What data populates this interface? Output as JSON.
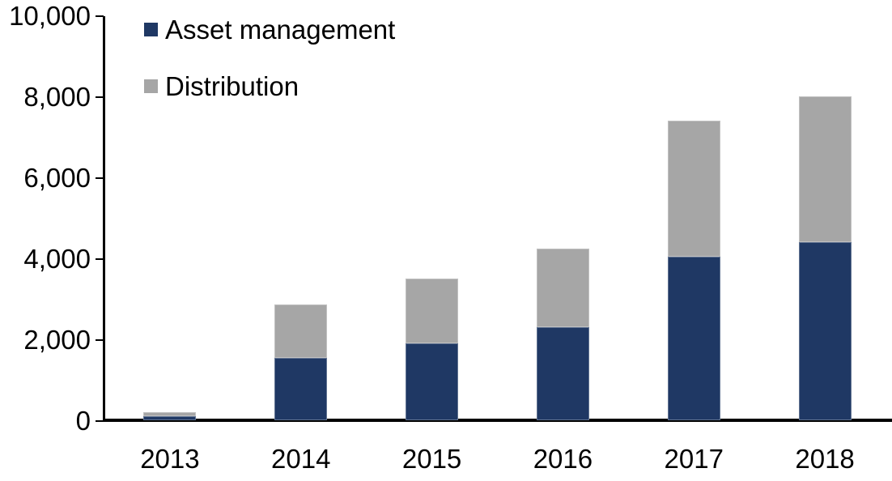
{
  "chart_data": {
    "type": "bar",
    "stacked": true,
    "title": "",
    "xlabel": "",
    "ylabel": "",
    "categories": [
      "2013",
      "2014",
      "2015",
      "2016",
      "2017",
      "2018"
    ],
    "series": [
      {
        "name": "Asset management",
        "color": "#1f3864",
        "values": [
          100,
          1550,
          1900,
          2300,
          4050,
          4400
        ]
      },
      {
        "name": "Distribution",
        "color": "#a6a6a6",
        "values": [
          100,
          1320,
          1600,
          1950,
          3350,
          3600
        ]
      }
    ],
    "totals": [
      200,
      2870,
      3500,
      4250,
      7400,
      8000
    ],
    "ylim": [
      0,
      10000
    ],
    "ytick_interval": 2000,
    "ytick_labels": [
      "0",
      "2,000",
      "4,000",
      "6,000",
      "8,000",
      "10,000"
    ],
    "grid": false,
    "legend_position": "top-left",
    "axis_color": "#000000",
    "text_color": "#000000"
  }
}
